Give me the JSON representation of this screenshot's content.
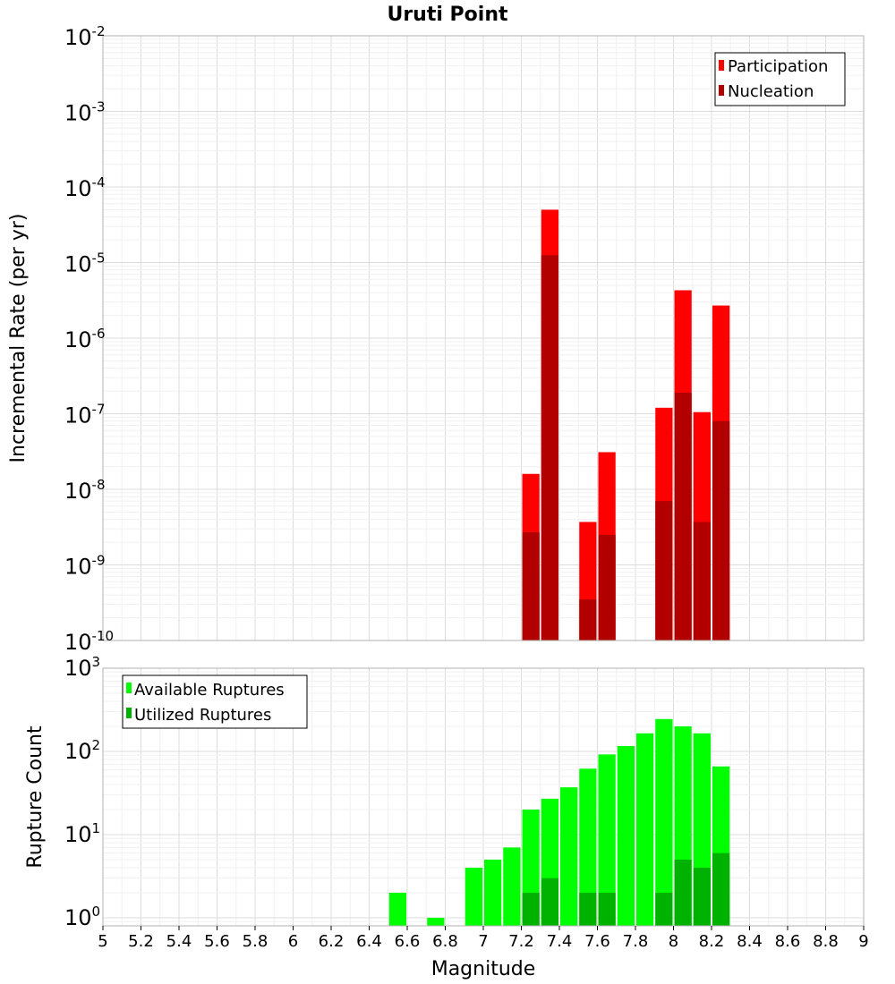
{
  "title": "Uruti Point",
  "xlabel": "Magnitude",
  "x_ticks": [
    "5",
    "5.2",
    "5.4",
    "5.6",
    "5.8",
    "6",
    "6.2",
    "6.4",
    "6.6",
    "6.8",
    "7",
    "7.2",
    "7.4",
    "7.6",
    "7.8",
    "8",
    "8.2",
    "8.4",
    "8.6",
    "8.8",
    "9"
  ],
  "colors": {
    "participation": "#ff0000",
    "nucleation": "#b20000",
    "available": "#00ff00",
    "utilized": "#00b200"
  },
  "chart_data": [
    {
      "type": "bar",
      "name": "rate-panel",
      "xlabel": "Magnitude",
      "ylabel": "Incremental Rate (per yr)",
      "y_scale": "log",
      "xlim": [
        5,
        9
      ],
      "ylim": [
        1e-10,
        0.01
      ],
      "y_tick_labels": [
        {
          "base": "10",
          "exp": "-10"
        },
        {
          "base": "10",
          "exp": "-9"
        },
        {
          "base": "10",
          "exp": "-8"
        },
        {
          "base": "10",
          "exp": "-7"
        },
        {
          "base": "10",
          "exp": "-6"
        },
        {
          "base": "10",
          "exp": "-5"
        },
        {
          "base": "10",
          "exp": "-4"
        },
        {
          "base": "10",
          "exp": "-3"
        },
        {
          "base": "10",
          "exp": "-2"
        }
      ],
      "legend_position": "top-right",
      "legend": [
        "Participation",
        "Nucleation"
      ],
      "x": [
        7.25,
        7.35,
        7.55,
        7.65,
        7.95,
        8.05,
        8.15,
        8.25
      ],
      "series": [
        {
          "name": "Participation",
          "values": [
            1.6e-08,
            5e-05,
            3.7e-09,
            3.1e-08,
            1.2e-07,
            4.3e-06,
            1.05e-07,
            2.7e-06
          ]
        },
        {
          "name": "Nucleation",
          "values": [
            2.7e-09,
            1.25e-05,
            3.5e-10,
            2.5e-09,
            7e-09,
            1.9e-07,
            3.7e-09,
            8e-08
          ]
        }
      ]
    },
    {
      "type": "bar",
      "name": "count-panel",
      "xlabel": "Magnitude",
      "ylabel": "Rupture Count",
      "y_scale": "log",
      "xlim": [
        5,
        9
      ],
      "ylim": [
        0.8,
        1000
      ],
      "y_tick_labels": [
        {
          "base": "10",
          "exp": "0"
        },
        {
          "base": "10",
          "exp": "1"
        },
        {
          "base": "10",
          "exp": "2"
        },
        {
          "base": "10",
          "exp": "3"
        }
      ],
      "legend_position": "top-left",
      "legend": [
        "Available Ruptures",
        "Utilized Ruptures"
      ],
      "x": [
        6.55,
        6.75,
        6.95,
        7.05,
        7.15,
        7.25,
        7.35,
        7.45,
        7.55,
        7.65,
        7.75,
        7.85,
        7.95,
        8.05,
        8.15,
        8.25
      ],
      "series": [
        {
          "name": "Available Ruptures",
          "values": [
            2,
            1,
            4,
            5,
            7,
            20,
            27,
            37,
            62,
            92,
            116,
            165,
            245,
            200,
            165,
            66
          ]
        },
        {
          "name": "Utilized Ruptures",
          "values": [
            0,
            0,
            0,
            0,
            0,
            2,
            3,
            0,
            2,
            2,
            0,
            0,
            2,
            5,
            4,
            6
          ]
        }
      ]
    }
  ]
}
